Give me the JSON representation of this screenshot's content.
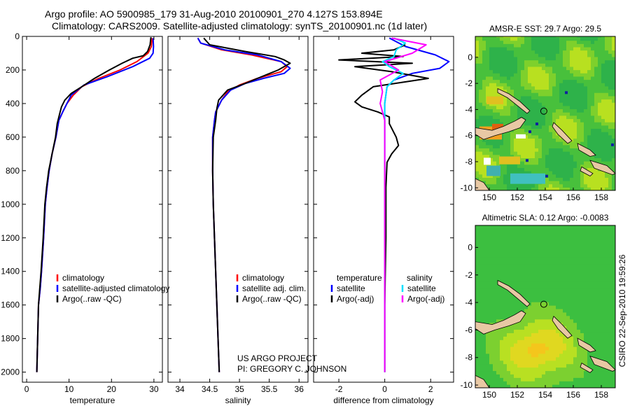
{
  "title_line1": "Argo profile: AO 5900985_179 31-Aug-2010 20100901_270 4.127S 153.894E",
  "title_line2": "Climatology: CARS2009. Satellite-adjusted climatology: synTS_20100901.nc (1d later)",
  "side_stamp": "CSIRO 22-Sep-2010 19:59:26",
  "credit": [
    "US ARGO PROJECT",
    "PI: GREGORY C. JOHNSON"
  ],
  "colors": {
    "climatology": "#ff0000",
    "satellite": "#0000ff",
    "argo": "#000000",
    "argo_sal_diff": "#ff00ff",
    "sat_sal_diff": "#00e0ff"
  },
  "chart_data": [
    {
      "type": "line",
      "xlabel": "temperature",
      "ylabel": "",
      "xlim": [
        -1,
        32
      ],
      "ylim": [
        2060,
        0
      ],
      "y_reversed": true,
      "xticks": [
        0,
        10,
        20,
        30
      ],
      "yticks": [
        0,
        200,
        400,
        600,
        800,
        1000,
        1200,
        1400,
        1600,
        1800,
        2000
      ],
      "legend": [
        "climatology",
        "satellite-adjusted climatology",
        "Argo(..raw -QC)"
      ],
      "series": [
        {
          "name": "climatology",
          "color": "#ff0000",
          "points": [
            [
              29.6,
              10
            ],
            [
              29.4,
              60
            ],
            [
              28.6,
              100
            ],
            [
              26,
              150
            ],
            [
              22,
              200
            ],
            [
              17,
              250
            ],
            [
              13,
              300
            ],
            [
              11,
              350
            ],
            [
              9.5,
              400
            ],
            [
              8.5,
              450
            ],
            [
              7.6,
              500
            ],
            [
              6.9,
              600
            ],
            [
              6,
              700
            ],
            [
              5.3,
              800
            ],
            [
              4.8,
              900
            ],
            [
              4.4,
              1000
            ],
            [
              4,
              1200
            ],
            [
              3.5,
              1400
            ],
            [
              3.2,
              1500
            ],
            [
              2.8,
              1600
            ],
            [
              2.6,
              1800
            ],
            [
              2.4,
              2000
            ]
          ]
        },
        {
          "name": "satellite-adjusted climatology",
          "color": "#0000ff",
          "points": [
            [
              29.8,
              10
            ],
            [
              29.9,
              60
            ],
            [
              29.8,
              100
            ],
            [
              29,
              130
            ],
            [
              25,
              180
            ],
            [
              19,
              240
            ],
            [
              13.5,
              290
            ],
            [
              10.5,
              350
            ],
            [
              9.5,
              400
            ],
            [
              8.5,
              450
            ],
            [
              7.6,
              500
            ],
            [
              6.9,
              600
            ],
            [
              6,
              700
            ],
            [
              5.3,
              800
            ],
            [
              4.8,
              900
            ],
            [
              4.4,
              1000
            ],
            [
              4,
              1200
            ],
            [
              3.5,
              1400
            ],
            [
              3.2,
              1500
            ],
            [
              2.8,
              1600
            ],
            [
              2.6,
              1800
            ],
            [
              2.4,
              2000
            ]
          ]
        },
        {
          "name": "Argo(..raw -QC)",
          "color": "#000000",
          "points": [
            [
              29.3,
              5
            ],
            [
              29.1,
              50
            ],
            [
              28.5,
              90
            ],
            [
              27.5,
              115
            ],
            [
              25,
              130
            ],
            [
              22.5,
              160
            ],
            [
              19.5,
              200
            ],
            [
              16,
              250
            ],
            [
              13,
              300
            ],
            [
              10.5,
              340
            ],
            [
              9,
              380
            ],
            [
              8.2,
              420
            ],
            [
              7.8,
              460
            ],
            [
              7.2,
              520
            ],
            [
              6.8,
              600
            ],
            [
              6,
              700
            ],
            [
              5.2,
              800
            ],
            [
              4.7,
              900
            ],
            [
              4.3,
              1000
            ],
            [
              3.9,
              1200
            ],
            [
              3.4,
              1400
            ],
            [
              3.1,
              1500
            ],
            [
              2.8,
              1600
            ],
            [
              2.6,
              1800
            ],
            [
              2.4,
              2000
            ]
          ]
        }
      ]
    },
    {
      "type": "line",
      "xlabel": "salinity",
      "ylabel": "",
      "xlim": [
        33.8,
        36.15
      ],
      "ylim": [
        2060,
        0
      ],
      "y_reversed": true,
      "xticks": [
        34,
        34.5,
        35,
        35.5,
        36
      ],
      "legend": [
        "climatology",
        "satellite adj. clim.",
        "Argo(..raw -QC)"
      ],
      "series": [
        {
          "name": "climatology",
          "color": "#ff0000",
          "points": [
            [
              34.3,
              10
            ],
            [
              34.35,
              40
            ],
            [
              34.7,
              80
            ],
            [
              35.2,
              110
            ],
            [
              35.7,
              150
            ],
            [
              35.8,
              180
            ],
            [
              35.7,
              210
            ],
            [
              35.3,
              250
            ],
            [
              35,
              290
            ],
            [
              34.8,
              330
            ],
            [
              34.7,
              380
            ],
            [
              34.6,
              450
            ],
            [
              34.58,
              500
            ],
            [
              34.55,
              600
            ],
            [
              34.55,
              800
            ],
            [
              34.56,
              1000
            ],
            [
              34.58,
              1200
            ],
            [
              34.6,
              1400
            ],
            [
              34.62,
              1600
            ],
            [
              34.64,
              1800
            ],
            [
              34.66,
              2000
            ]
          ]
        },
        {
          "name": "satellite adj. clim.",
          "color": "#0000ff",
          "points": [
            [
              34.3,
              10
            ],
            [
              34.35,
              40
            ],
            [
              34.75,
              80
            ],
            [
              35.3,
              110
            ],
            [
              35.7,
              150
            ],
            [
              35.85,
              190
            ],
            [
              35.75,
              220
            ],
            [
              35.4,
              250
            ],
            [
              35.1,
              280
            ],
            [
              34.85,
              320
            ],
            [
              34.7,
              380
            ],
            [
              34.6,
              450
            ],
            [
              34.58,
              500
            ],
            [
              34.55,
              600
            ],
            [
              34.55,
              800
            ],
            [
              34.56,
              1000
            ],
            [
              34.58,
              1200
            ],
            [
              34.6,
              1400
            ],
            [
              34.62,
              1600
            ],
            [
              34.64,
              1800
            ],
            [
              34.66,
              2000
            ]
          ]
        },
        {
          "name": "Argo(..raw -QC)",
          "color": "#000000",
          "points": [
            [
              34.4,
              10
            ],
            [
              34.5,
              50
            ],
            [
              35.1,
              90
            ],
            [
              35.6,
              120
            ],
            [
              35.75,
              140
            ],
            [
              35.85,
              160
            ],
            [
              35.65,
              200
            ],
            [
              35.3,
              250
            ],
            [
              35.1,
              280
            ],
            [
              34.8,
              320
            ],
            [
              34.65,
              380
            ],
            [
              34.62,
              430
            ],
            [
              34.6,
              500
            ],
            [
              34.56,
              600
            ],
            [
              34.55,
              800
            ],
            [
              34.56,
              1000
            ],
            [
              34.58,
              1200
            ],
            [
              34.6,
              1400
            ],
            [
              34.62,
              1600
            ],
            [
              34.64,
              1800
            ],
            [
              34.66,
              2000
            ]
          ]
        }
      ]
    },
    {
      "type": "line",
      "xlabel": "difference from climatology",
      "ylabel": "",
      "xlim": [
        -3.1,
        3
      ],
      "ylim": [
        2060,
        0
      ],
      "y_reversed": true,
      "xticks": [
        -2,
        0,
        2
      ],
      "legend": [
        "temperature",
        "satellite",
        "Argo(-adj)",
        "salinity",
        "satellite",
        "Argo(-adj)"
      ],
      "series": [
        {
          "name": "temperature satellite",
          "color": "#0000ff",
          "points": [
            [
              0.2,
              10
            ],
            [
              0.9,
              60
            ],
            [
              2.2,
              110
            ],
            [
              2.8,
              150
            ],
            [
              2.4,
              190
            ],
            [
              1.2,
              220
            ],
            [
              0.4,
              260
            ],
            [
              0.1,
              300
            ],
            [
              0,
              400
            ],
            [
              0,
              600
            ],
            [
              0,
              1000
            ],
            [
              0,
              1500
            ],
            [
              0,
              2000
            ]
          ]
        },
        {
          "name": "temperature Argo(-adj)",
          "color": "#000000",
          "points": [
            [
              0.9,
              50
            ],
            [
              0.4,
              80
            ],
            [
              -1,
              100
            ],
            [
              0.8,
              120
            ],
            [
              -2,
              140
            ],
            [
              1.2,
              160
            ],
            [
              -1.3,
              180
            ],
            [
              0.3,
              210
            ],
            [
              1.9,
              250
            ],
            [
              -0.5,
              300
            ],
            [
              -1,
              350
            ],
            [
              -1.3,
              390
            ],
            [
              -1,
              420
            ],
            [
              -0.3,
              450
            ],
            [
              0.2,
              480
            ],
            [
              0.2,
              520
            ],
            [
              0.5,
              600
            ],
            [
              0.6,
              650
            ],
            [
              0.3,
              700
            ],
            [
              0.1,
              750
            ],
            [
              0.05,
              900
            ],
            [
              0.05,
              1200
            ],
            [
              0,
              1600
            ],
            [
              0,
              2000
            ]
          ]
        },
        {
          "name": "salinity satellite",
          "color": "#00e0ff",
          "points": [
            [
              0.4,
              10
            ],
            [
              0.9,
              40
            ],
            [
              0.5,
              80
            ],
            [
              0.4,
              120
            ],
            [
              -0.1,
              150
            ],
            [
              0.2,
              180
            ],
            [
              0.8,
              220
            ],
            [
              0.4,
              260
            ],
            [
              0.1,
              300
            ],
            [
              0,
              400
            ],
            [
              0,
              600
            ],
            [
              0,
              1000
            ],
            [
              0,
              1500
            ],
            [
              0,
              2000
            ]
          ]
        },
        {
          "name": "salinity Argo(-adj)",
          "color": "#ff00ff",
          "points": [
            [
              0.3,
              10
            ],
            [
              1.8,
              50
            ],
            [
              1.2,
              100
            ],
            [
              0,
              150
            ],
            [
              0.6,
              200
            ],
            [
              -0.2,
              260
            ],
            [
              -0.1,
              330
            ],
            [
              -0.2,
              400
            ],
            [
              -0.1,
              450
            ],
            [
              0,
              500
            ],
            [
              0,
              600
            ],
            [
              0,
              1000
            ],
            [
              0,
              1500
            ],
            [
              0,
              2000
            ]
          ]
        }
      ]
    },
    {
      "type": "heatmap",
      "title": "AMSR-E SST: 29.7 Argo: 29.5",
      "xlim": [
        149,
        159
      ],
      "ylim": [
        -10.2,
        1.6
      ],
      "xticks": [
        150,
        152,
        154,
        156,
        158
      ],
      "yticks": [
        0,
        -2,
        -4,
        -6,
        -8,
        -10
      ],
      "marker": {
        "lon": 153.894,
        "lat": -4.127
      }
    },
    {
      "type": "heatmap",
      "title": "Altimetric SLA: 0.12 Argo: -0.0083",
      "xlim": [
        149,
        159
      ],
      "ylim": [
        -10.2,
        1.6
      ],
      "xticks": [
        150,
        152,
        154,
        156,
        158
      ],
      "yticks": [
        0,
        -2,
        -4,
        -6,
        -8,
        -10
      ],
      "marker": {
        "lon": 153.894,
        "lat": -4.127
      }
    }
  ]
}
